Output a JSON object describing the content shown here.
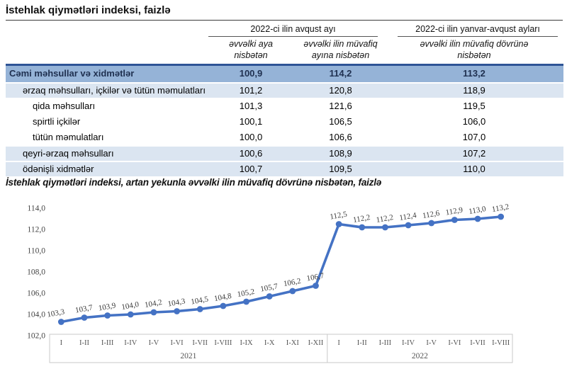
{
  "page": {
    "table_title": "İstehlak qiymətləri indeksi, faizlə",
    "chart_title": "İstehlak qiymətləri indeksi, artan yekunla əvvəlki ilin müvafiq dövrünə nisbətən, faizlə"
  },
  "table": {
    "group_headers": [
      {
        "label": "2022-ci ilin avqust ayı"
      },
      {
        "label": "2022-ci ilin yanvar-avqust ayları"
      }
    ],
    "sub_headers": [
      "əvvəlki aya nisbətən",
      "əvvəlki ilin müvafiq ayına nisbətən",
      "əvvəlki ilin müvafiq dövrünə nisbətən"
    ],
    "rows": [
      {
        "label": "Cəmi məhsullar və xidmətlər",
        "level": 0,
        "style": "total",
        "values": [
          "100,9",
          "114,2",
          "113,2"
        ]
      },
      {
        "label": "ərzaq məhsulları, içkilər və tütün məmulatları",
        "level": 1,
        "style": "alt",
        "values": [
          "101,2",
          "120,8",
          "118,9"
        ]
      },
      {
        "label": "qida məhsulları",
        "level": 2,
        "style": "plain",
        "values": [
          "101,3",
          "121,6",
          "119,5"
        ]
      },
      {
        "label": "spirtli içkilər",
        "level": 2,
        "style": "plain",
        "values": [
          "100,1",
          "106,5",
          "106,0"
        ]
      },
      {
        "label": "tütün məmulatları",
        "level": 2,
        "style": "plain",
        "values": [
          "100,0",
          "106,6",
          "107,0"
        ]
      },
      {
        "label": "qeyri-ərzaq məhsulları",
        "level": 1,
        "style": "alt",
        "values": [
          "100,6",
          "108,9",
          "107,2"
        ]
      },
      {
        "label": "ödənişli xidmətlər",
        "level": 1,
        "style": "alt",
        "values": [
          "100,7",
          "109,5",
          "110,0"
        ]
      }
    ]
  },
  "chart_data": {
    "type": "line",
    "title": "İstehlak qiymətləri indeksi, artan yekunla əvvəlki ilin müvafiq dövrünə nisbətən, faizlə",
    "categories": [
      "I",
      "I-II",
      "I-III",
      "I-IV",
      "I-V",
      "I-VI",
      "I-VII",
      "I-VIII",
      "I-IX",
      "I-X",
      "I-XI",
      "I-XII",
      "I",
      "I-II",
      "I-III",
      "I-IV",
      "I-V",
      "I-VI",
      "I-VII",
      "I-VIII"
    ],
    "groups": [
      {
        "label": "2021",
        "count": 12
      },
      {
        "label": "2022",
        "count": 8
      }
    ],
    "values": [
      103.3,
      103.7,
      103.9,
      104.0,
      104.2,
      104.3,
      104.5,
      104.8,
      105.2,
      105.7,
      106.2,
      106.7,
      112.5,
      112.2,
      112.2,
      112.4,
      112.6,
      112.9,
      113.0,
      113.2
    ],
    "point_labels": [
      "103,3",
      "103,7",
      "103,9",
      "104,0",
      "104,2",
      "104,3",
      "104,5",
      "104,8",
      "105,2",
      "105,7",
      "106,2",
      "106,7",
      "112,5",
      "112,2",
      "112,2",
      "112,4",
      "112,6",
      "112,9",
      "113,0",
      "113,2"
    ],
    "ytick_labels": [
      "114,0",
      "112,0",
      "110,0",
      "108,0",
      "106,0",
      "104,0",
      "102,0"
    ],
    "ylim": [
      102,
      114
    ],
    "ytick_step": 2,
    "grid": false,
    "legend": "none",
    "line_color": "#4472c4",
    "axis_text_color": "#555555",
    "label_text_color": "#3a3a3a",
    "axis_box_color": "#c9c9c9"
  }
}
